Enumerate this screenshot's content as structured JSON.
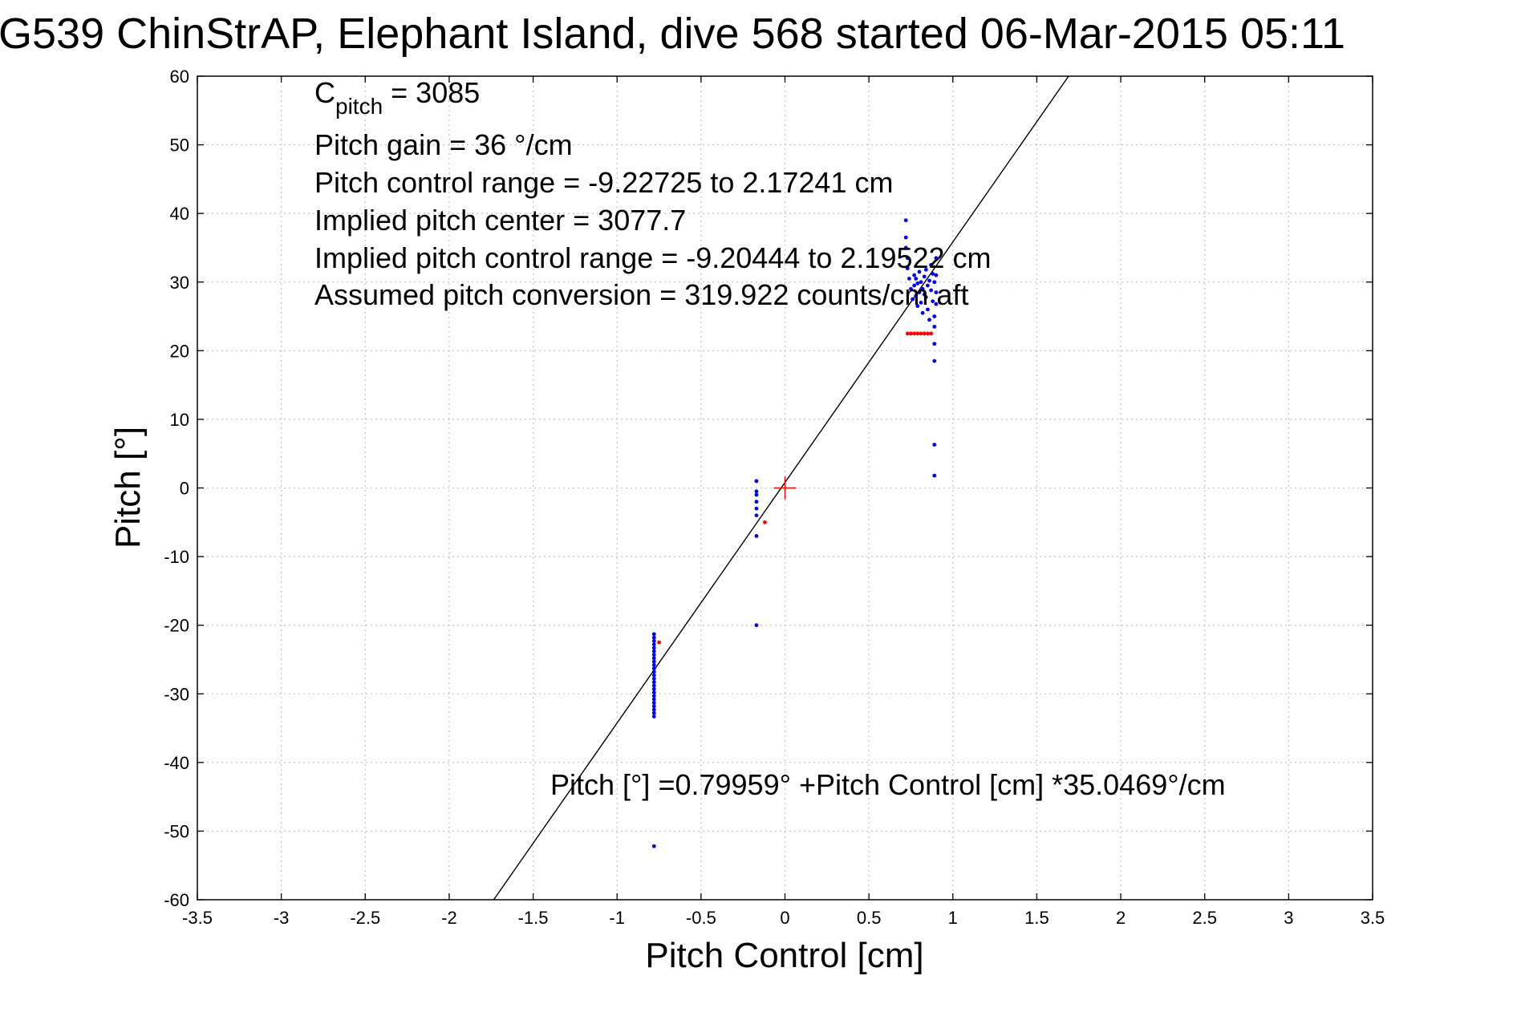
{
  "chart_data": {
    "type": "scatter",
    "title": "G539 ChinStrAP, Elephant Island, dive 568 started 06-Mar-2015 05:11",
    "xlabel": "Pitch Control [cm]",
    "ylabel": "Pitch [°]",
    "xlim": [
      -3.5,
      3.5
    ],
    "ylim": [
      -60,
      60
    ],
    "x_ticks": [
      -3.5,
      -3,
      -2.5,
      -2,
      -1.5,
      -1,
      -0.5,
      0,
      0.5,
      1,
      1.5,
      2,
      2.5,
      3,
      3.5
    ],
    "x_tick_labels": [
      "-3.5",
      "-3",
      "-2.5",
      "-2",
      "-1.5",
      "-1",
      "-0.5",
      "0",
      "0.5",
      "1",
      "1.5",
      "2",
      "2.5",
      "3",
      "3.5"
    ],
    "y_ticks": [
      -60,
      -50,
      -40,
      -30,
      -20,
      -10,
      0,
      10,
      20,
      30,
      40,
      50,
      60
    ],
    "y_tick_labels": [
      "-60",
      "-50",
      "-40",
      "-30",
      "-20",
      "-10",
      "0",
      "10",
      "20",
      "30",
      "40",
      "50",
      "60"
    ],
    "grid": true,
    "annotations": {
      "c_pitch_label": "C",
      "c_pitch_subscript": "pitch",
      "c_pitch_value": " = 3085",
      "line2": "Pitch gain = 36 °/cm",
      "line3": "Pitch control range = -9.22725 to 2.17241 cm",
      "line4": "Implied pitch center = 3077.7",
      "line5": "Implied pitch control range = -9.20444 to 2.19522 cm",
      "line6": "Assumed pitch conversion = 319.922 counts/cm aft",
      "fit_equation": "Pitch [°] =0.79959° +Pitch Control [cm] *35.0469°/cm"
    },
    "fit_line": {
      "intercept": 0.79959,
      "slope": 35.0469,
      "color": "#000000"
    },
    "origin_marker": {
      "x": 0,
      "y": 0,
      "color": "#ff0000"
    },
    "series": [
      {
        "color": "#0000ff",
        "points": [
          [
            -0.78,
            -21.3
          ],
          [
            -0.78,
            -21.8
          ],
          [
            -0.78,
            -22.3
          ],
          [
            -0.78,
            -22.8
          ],
          [
            -0.78,
            -23.3
          ],
          [
            -0.78,
            -23.8
          ],
          [
            -0.78,
            -24.3
          ],
          [
            -0.78,
            -24.8
          ],
          [
            -0.78,
            -25.3
          ],
          [
            -0.78,
            -25.8
          ],
          [
            -0.78,
            -26.3
          ],
          [
            -0.78,
            -26.8
          ],
          [
            -0.78,
            -27.3
          ],
          [
            -0.78,
            -27.8
          ],
          [
            -0.78,
            -28.3
          ],
          [
            -0.78,
            -28.8
          ],
          [
            -0.78,
            -29.3
          ],
          [
            -0.78,
            -29.8
          ],
          [
            -0.78,
            -30.3
          ],
          [
            -0.78,
            -30.8
          ],
          [
            -0.78,
            -31.3
          ],
          [
            -0.78,
            -31.8
          ],
          [
            -0.78,
            -32.3
          ],
          [
            -0.78,
            -32.8
          ],
          [
            -0.78,
            -33.3
          ],
          [
            -0.78,
            -52.2
          ],
          [
            -0.17,
            1.0
          ],
          [
            -0.17,
            -0.5
          ],
          [
            -0.17,
            -1.0
          ],
          [
            -0.17,
            -2.0
          ],
          [
            -0.17,
            -3.0
          ],
          [
            -0.17,
            -4.0
          ],
          [
            -0.17,
            -7.0
          ],
          [
            -0.17,
            -20.0
          ],
          [
            0.72,
            39.0
          ],
          [
            0.72,
            36.5
          ],
          [
            0.72,
            35.0
          ],
          [
            0.73,
            33.5
          ],
          [
            0.73,
            32.0
          ],
          [
            0.74,
            30.5
          ],
          [
            0.75,
            29.0
          ],
          [
            0.76,
            27.5
          ],
          [
            0.77,
            31.0
          ],
          [
            0.77,
            29.5
          ],
          [
            0.78,
            30.5
          ],
          [
            0.78,
            28.0
          ],
          [
            0.79,
            29.8
          ],
          [
            0.79,
            26.5
          ],
          [
            0.8,
            31.5
          ],
          [
            0.8,
            28.5
          ],
          [
            0.81,
            30.0
          ],
          [
            0.81,
            27.0
          ],
          [
            0.82,
            29.0
          ],
          [
            0.82,
            25.5
          ],
          [
            0.83,
            30.8
          ],
          [
            0.83,
            28.2
          ],
          [
            0.84,
            31.8
          ],
          [
            0.84,
            27.8
          ],
          [
            0.85,
            29.5
          ],
          [
            0.85,
            26.0
          ],
          [
            0.86,
            30.2
          ],
          [
            0.86,
            24.5
          ],
          [
            0.87,
            32.5
          ],
          [
            0.87,
            28.8
          ],
          [
            0.88,
            31.2
          ],
          [
            0.88,
            27.2
          ],
          [
            0.89,
            30.0
          ],
          [
            0.89,
            25.0
          ],
          [
            0.9,
            33.5
          ],
          [
            0.9,
            31.0
          ],
          [
            0.9,
            28.5
          ],
          [
            0.9,
            26.8
          ],
          [
            0.89,
            23.5
          ],
          [
            0.89,
            21.0
          ],
          [
            0.89,
            18.5
          ],
          [
            0.89,
            6.3
          ],
          [
            0.89,
            1.8
          ]
        ]
      },
      {
        "color": "#ff0000",
        "points": [
          [
            0.73,
            22.5
          ],
          [
            0.75,
            22.5
          ],
          [
            0.77,
            22.5
          ],
          [
            0.79,
            22.5
          ],
          [
            0.81,
            22.5
          ],
          [
            0.83,
            22.5
          ],
          [
            0.85,
            22.5
          ],
          [
            0.87,
            22.5
          ],
          [
            -0.75,
            -22.5
          ],
          [
            -0.12,
            -5.0
          ]
        ]
      }
    ]
  }
}
